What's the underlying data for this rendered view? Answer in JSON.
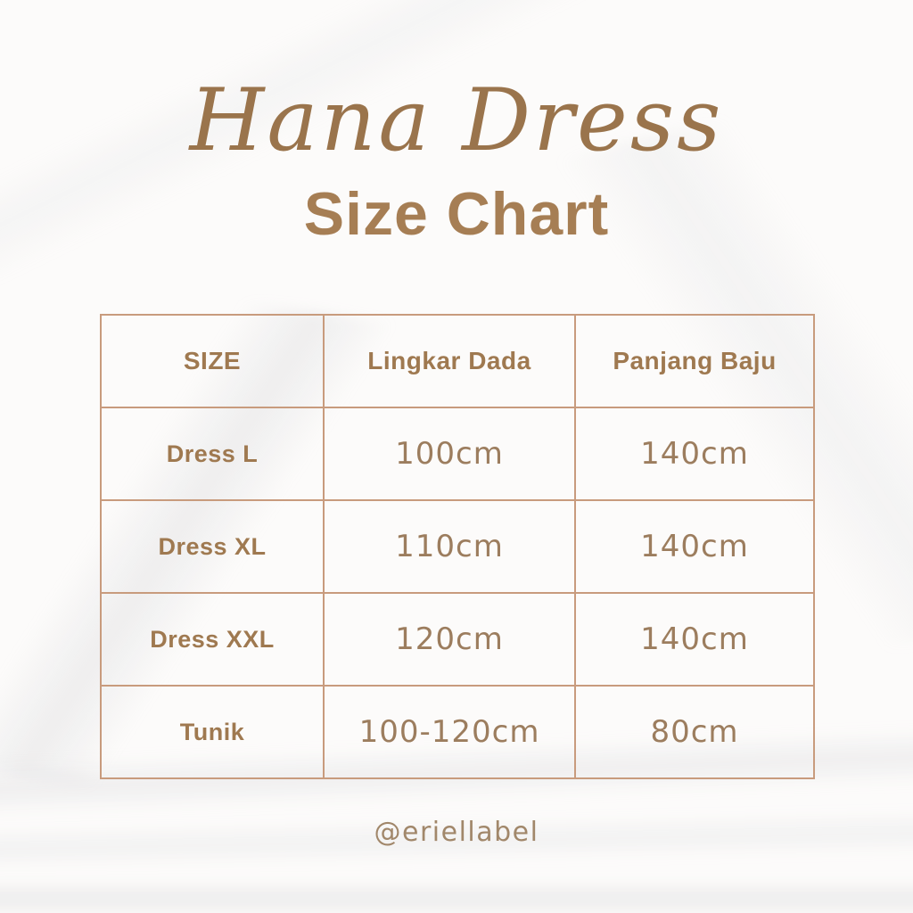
{
  "header": {
    "script_title": "Hana Dress",
    "main_title": "Size Chart"
  },
  "table": {
    "headers": [
      "SIZE",
      "Lingkar Dada",
      "Panjang Baju"
    ],
    "rows": [
      [
        "Dress L",
        "100cm",
        "140cm"
      ],
      [
        "Dress XL",
        "110cm",
        "140cm"
      ],
      [
        "Dress XXL",
        "120cm",
        "140cm"
      ],
      [
        "Tunik",
        "100-120cm",
        "80cm"
      ]
    ]
  },
  "footer": {
    "handle": "@eriellabel"
  },
  "colors": {
    "background": "#fcfbfa",
    "script_title": "#9a744c",
    "main_title": "#a67e54",
    "table_border": "#c89b7d",
    "header_text": "#9f7950",
    "value_text": "#9c7d5e",
    "footer_text": "#a1876a"
  }
}
